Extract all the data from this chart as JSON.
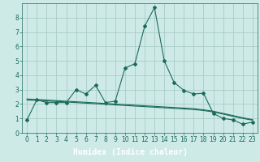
{
  "title": "",
  "xlabel": "Humidex (Indice chaleur)",
  "background_color": "#ceeae6",
  "plot_bg_color": "#ceeae6",
  "grid_color": "#aacbc6",
  "line_color": "#1a6b5a",
  "xlabel_bg": "#2a7a6a",
  "xlabel_color": "#ffffff",
  "x": [
    0,
    1,
    2,
    3,
    4,
    5,
    6,
    7,
    8,
    9,
    10,
    11,
    12,
    13,
    14,
    15,
    16,
    17,
    18,
    19,
    20,
    21,
    22,
    23
  ],
  "y_main": [
    0.9,
    2.3,
    2.1,
    2.1,
    2.1,
    3.0,
    2.7,
    3.3,
    2.1,
    2.2,
    4.5,
    4.8,
    7.4,
    8.7,
    5.0,
    3.5,
    2.95,
    2.7,
    2.75,
    1.35,
    1.0,
    0.9,
    0.6,
    0.75
  ],
  "y_line2": [
    2.35,
    2.32,
    2.28,
    2.24,
    2.2,
    2.16,
    2.12,
    2.08,
    2.04,
    2.0,
    1.96,
    1.92,
    1.88,
    1.84,
    1.8,
    1.76,
    1.72,
    1.68,
    1.6,
    1.5,
    1.35,
    1.2,
    1.05,
    0.92
  ],
  "y_line3": [
    2.28,
    2.25,
    2.21,
    2.18,
    2.14,
    2.1,
    2.06,
    2.02,
    1.98,
    1.94,
    1.9,
    1.86,
    1.82,
    1.78,
    1.74,
    1.7,
    1.66,
    1.62,
    1.55,
    1.45,
    1.3,
    1.15,
    1.0,
    0.88
  ],
  "ylim": [
    0,
    9
  ],
  "xlim": [
    -0.5,
    23.5
  ],
  "yticks": [
    0,
    1,
    2,
    3,
    4,
    5,
    6,
    7,
    8
  ],
  "xticks": [
    0,
    1,
    2,
    3,
    4,
    5,
    6,
    7,
    8,
    9,
    10,
    11,
    12,
    13,
    14,
    15,
    16,
    17,
    18,
    19,
    20,
    21,
    22,
    23
  ],
  "tick_fontsize": 5.5,
  "xlabel_fontsize": 7.0
}
